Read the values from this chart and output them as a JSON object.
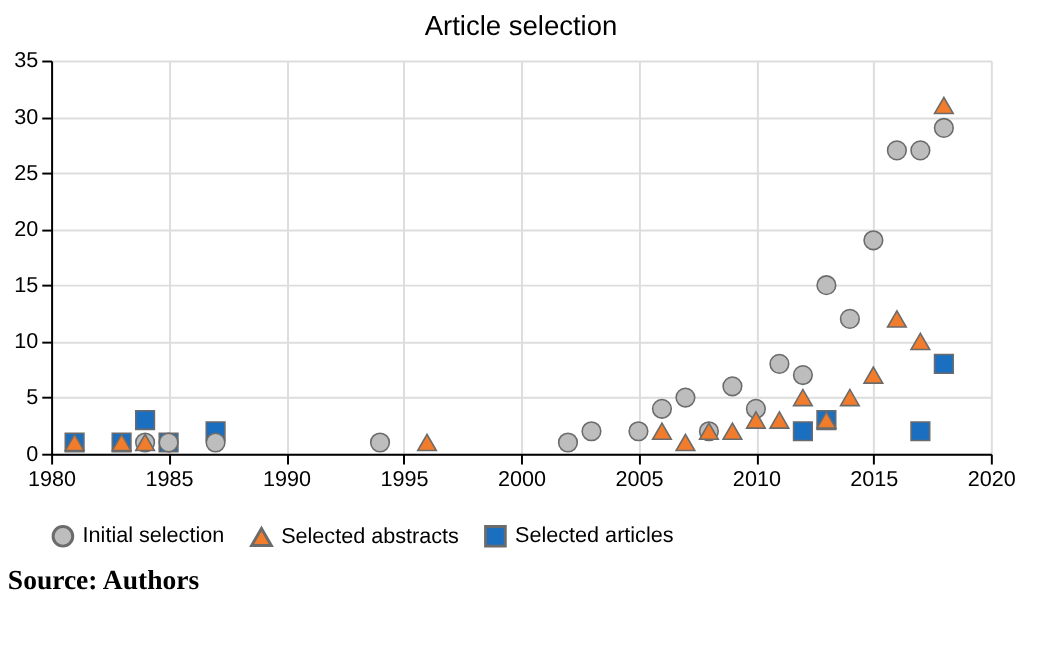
{
  "chart_data": {
    "type": "scatter",
    "title": "Article selection",
    "xlim": [
      1980,
      2020
    ],
    "xticks": [
      1980,
      1985,
      1990,
      1995,
      2000,
      2005,
      2010,
      2015,
      2020
    ],
    "ylim": [
      0,
      35
    ],
    "yticks": [
      0,
      5,
      10,
      15,
      20,
      25,
      30,
      35
    ],
    "grid": true,
    "legend": "bottom",
    "annotations": [
      "Source: Authors"
    ],
    "series": [
      {
        "name": "Initial selection",
        "color": "#bdbdbd",
        "marker": "circle",
        "x": [
          1984,
          1985,
          1987,
          1994,
          2002,
          2003,
          2005,
          2006,
          2007,
          2008,
          2009,
          2010,
          2011,
          2012,
          2013,
          2014,
          2015,
          2016,
          2017,
          2018
        ],
        "values": [
          1,
          1,
          1,
          1,
          1,
          2,
          2,
          4,
          5,
          2,
          6,
          4,
          8,
          7,
          15,
          12,
          19,
          27,
          27,
          29
        ]
      },
      {
        "name": "Selected abstracts",
        "color": "#f07c2c",
        "marker": "triangle",
        "x": [
          1981,
          1983,
          1984,
          1996,
          2006,
          2007,
          2008,
          2009,
          2010,
          2011,
          2012,
          2013,
          2014,
          2015,
          2016,
          2017,
          2018
        ],
        "values": [
          1,
          1,
          1,
          1,
          2,
          1,
          2,
          2,
          3,
          3,
          5,
          3,
          5,
          7,
          12,
          10,
          31
        ]
      },
      {
        "name": "Selected articles",
        "color": "#1a6fc0",
        "marker": "square",
        "x": [
          1981,
          1983,
          1984,
          1985,
          1987,
          2012,
          2013,
          2017,
          2018
        ],
        "values": [
          1,
          1,
          3,
          1,
          2,
          2,
          3,
          2,
          8
        ]
      }
    ]
  }
}
